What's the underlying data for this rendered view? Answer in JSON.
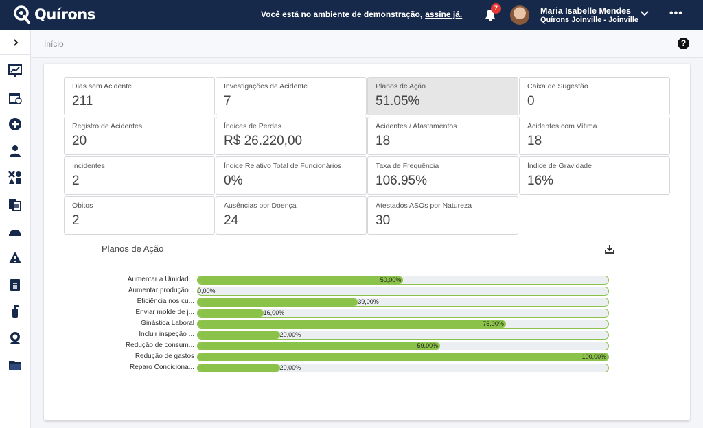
{
  "brand": {
    "name": "Quírons"
  },
  "topbar": {
    "demo_text": "Você está no ambiente de demonstração,",
    "demo_link": "assine já.",
    "notifications": "7",
    "user_name": "Maria Isabelle Mendes",
    "user_org": "Quírons Joinville - Joinville"
  },
  "breadcrumb": "Início",
  "sidebar_icons": [
    "dashboard-icon",
    "calendar-icon",
    "add-circle-icon",
    "users-icon",
    "shapes-icon",
    "documents-icon",
    "helmet-icon",
    "warning-icon",
    "clipboard-icon",
    "extinguisher-icon",
    "person-icon",
    "folder-icon"
  ],
  "tiles": [
    {
      "label": "Dias sem Acidente",
      "value": "211"
    },
    {
      "label": "Investigações de Acidente",
      "value": "7"
    },
    {
      "label": "Planos de Ação",
      "value": "51.05%",
      "active": true
    },
    {
      "label": "Caixa de Sugestão",
      "value": "0"
    },
    {
      "label": "Registro de Acidentes",
      "value": "20"
    },
    {
      "label": "Índices de Perdas",
      "value": "R$ 26.220,00"
    },
    {
      "label": "Acidentes / Afastamentos",
      "value": "18"
    },
    {
      "label": "Acidentes com Vítima",
      "value": "18"
    },
    {
      "label": "Incidentes",
      "value": "2"
    },
    {
      "label": "Índice Relativo Total de Funcionários",
      "value": "0%"
    },
    {
      "label": "Taxa de Frequência",
      "value": "106.95%"
    },
    {
      "label": "Índice de Gravidade",
      "value": "16%"
    },
    {
      "label": "Óbitos",
      "value": "2"
    },
    {
      "label": "Ausências por Doença",
      "value": "24"
    },
    {
      "label": "Atestados ASOs por Natureza",
      "value": "30"
    }
  ],
  "chart_data": {
    "type": "bar",
    "title": "Planos de Ação",
    "orientation": "horizontal",
    "categories": [
      "Aumentar a Umidad...",
      "Aumentar produção...",
      "Eficiência nos cu...",
      "Enviar molde de j...",
      "Ginástica Laboral",
      "Incluir inspeção ...",
      "Redução de consum...",
      "Redução de gastos",
      "Reparo Condiciona..."
    ],
    "values": [
      50,
      0,
      39,
      16,
      75,
      20,
      59,
      100,
      20
    ],
    "value_labels": [
      "50,00%",
      "0,00%",
      "39,00%",
      "16,00%",
      "75,00%",
      "20,00%",
      "59,00%",
      "100,00%",
      "20,00%"
    ],
    "xlim": [
      0,
      100
    ],
    "color": "#8bc34a",
    "track_color": "#eceff1"
  }
}
